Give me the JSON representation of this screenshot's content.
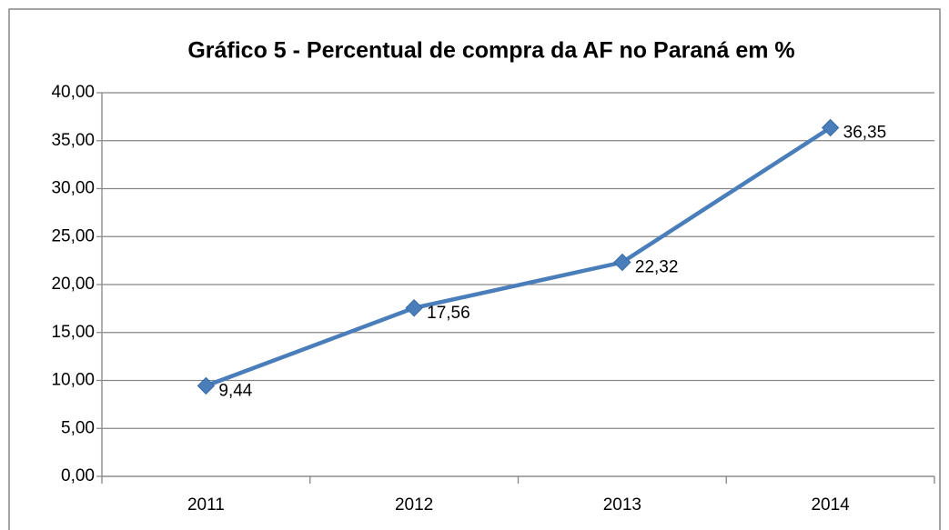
{
  "chart_data": {
    "type": "line",
    "title": "Gráfico 5 - Percentual de compra da AF no Paraná em %",
    "categories": [
      "2011",
      "2012",
      "2013",
      "2014"
    ],
    "series": [
      {
        "name": null,
        "color": "#4a7ebb",
        "values": [
          9.44,
          17.56,
          22.32,
          36.35
        ],
        "value_labels": [
          "9,44",
          "17,56",
          "22,32",
          "36,35"
        ]
      }
    ],
    "ylim": [
      0,
      40
    ],
    "yticks": [
      {
        "value": 0,
        "label": "0,00"
      },
      {
        "value": 5,
        "label": "5,00"
      },
      {
        "value": 10,
        "label": "10,00"
      },
      {
        "value": 15,
        "label": "15,00"
      },
      {
        "value": 20,
        "label": "20,00"
      },
      {
        "value": 25,
        "label": "25,00"
      },
      {
        "value": 30,
        "label": "30,00"
      },
      {
        "value": 35,
        "label": "35,00"
      },
      {
        "value": 40,
        "label": "40,00"
      }
    ],
    "grid": true
  }
}
